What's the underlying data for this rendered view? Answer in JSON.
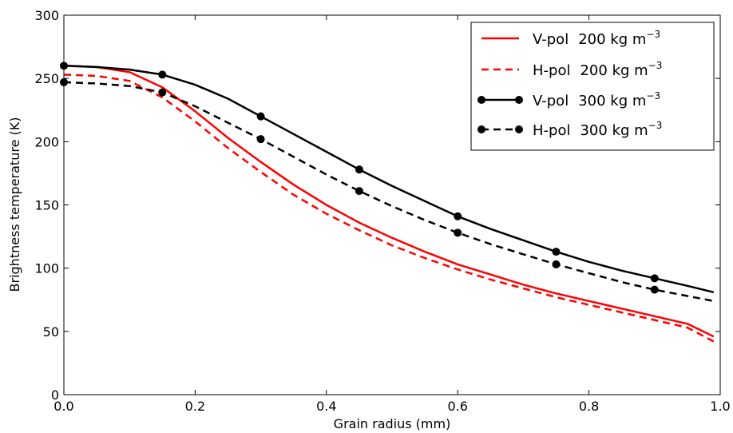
{
  "chart_data": {
    "type": "line",
    "title": "",
    "xlabel": "Grain radius (mm)",
    "ylabel": "Brightness temperature (K)",
    "xlim": [
      0.0,
      1.0
    ],
    "ylim": [
      0,
      300
    ],
    "xticks": [
      "0.0",
      "0.2",
      "0.4",
      "0.6",
      "0.8",
      "1.0"
    ],
    "yticks": [
      "0",
      "50",
      "100",
      "150",
      "200",
      "250",
      "300"
    ],
    "grid": false,
    "legend_position": "top-right",
    "series": [
      {
        "name": "V-pol",
        "density": "200 kg m",
        "exponent": "−3",
        "color": "#ff0000",
        "style": "solid",
        "markers": false,
        "x": [
          0.0,
          0.05,
          0.1,
          0.15,
          0.2,
          0.25,
          0.3,
          0.35,
          0.4,
          0.45,
          0.5,
          0.55,
          0.6,
          0.65,
          0.7,
          0.75,
          0.8,
          0.85,
          0.9,
          0.95,
          0.99
        ],
        "y": [
          260,
          259,
          255,
          243,
          224,
          203,
          184,
          166,
          150,
          136,
          124,
          113,
          103,
          95,
          87,
          80,
          74,
          68,
          62,
          56,
          46
        ]
      },
      {
        "name": "H-pol",
        "density": "200 kg m",
        "exponent": "−3",
        "color": "#ff0000",
        "style": "dashed",
        "markers": false,
        "x": [
          0.0,
          0.05,
          0.1,
          0.15,
          0.2,
          0.25,
          0.3,
          0.35,
          0.4,
          0.45,
          0.5,
          0.55,
          0.6,
          0.65,
          0.7,
          0.75,
          0.8,
          0.85,
          0.9,
          0.95,
          0.99
        ],
        "y": [
          253,
          252,
          248,
          235,
          216,
          195,
          176,
          158,
          143,
          130,
          118,
          108,
          99,
          91,
          84,
          77,
          71,
          65,
          59,
          53,
          42
        ]
      },
      {
        "name": "V-pol",
        "density": "300 kg m",
        "exponent": "−3",
        "color": "#000000",
        "style": "solid",
        "markers": true,
        "x": [
          0.0,
          0.05,
          0.1,
          0.15,
          0.2,
          0.25,
          0.3,
          0.35,
          0.4,
          0.45,
          0.5,
          0.55,
          0.6,
          0.65,
          0.7,
          0.75,
          0.8,
          0.85,
          0.9,
          0.95,
          0.99
        ],
        "y": [
          260,
          259,
          257,
          253,
          245,
          234,
          220,
          206,
          192,
          178,
          165,
          153,
          141,
          131,
          122,
          113,
          105,
          98,
          92,
          86,
          81
        ],
        "marker_x": [
          0.0,
          0.15,
          0.3,
          0.45,
          0.6,
          0.75,
          0.9
        ],
        "marker_y": [
          260,
          253,
          220,
          178,
          141,
          113,
          92
        ]
      },
      {
        "name": "H-pol",
        "density": "300 kg m",
        "exponent": "−3",
        "color": "#000000",
        "style": "dashed",
        "markers": true,
        "x": [
          0.0,
          0.05,
          0.1,
          0.15,
          0.2,
          0.25,
          0.3,
          0.35,
          0.4,
          0.45,
          0.5,
          0.55,
          0.6,
          0.65,
          0.7,
          0.75,
          0.8,
          0.85,
          0.9,
          0.95,
          0.99
        ],
        "y": [
          247,
          246,
          244,
          239,
          228,
          215,
          202,
          188,
          174,
          161,
          149,
          138,
          128,
          119,
          111,
          103,
          96,
          89,
          83,
          78,
          74
        ],
        "marker_x": [
          0.0,
          0.15,
          0.3,
          0.45,
          0.6,
          0.75,
          0.9
        ],
        "marker_y": [
          247,
          239,
          202,
          161,
          128,
          103,
          83
        ]
      }
    ]
  }
}
